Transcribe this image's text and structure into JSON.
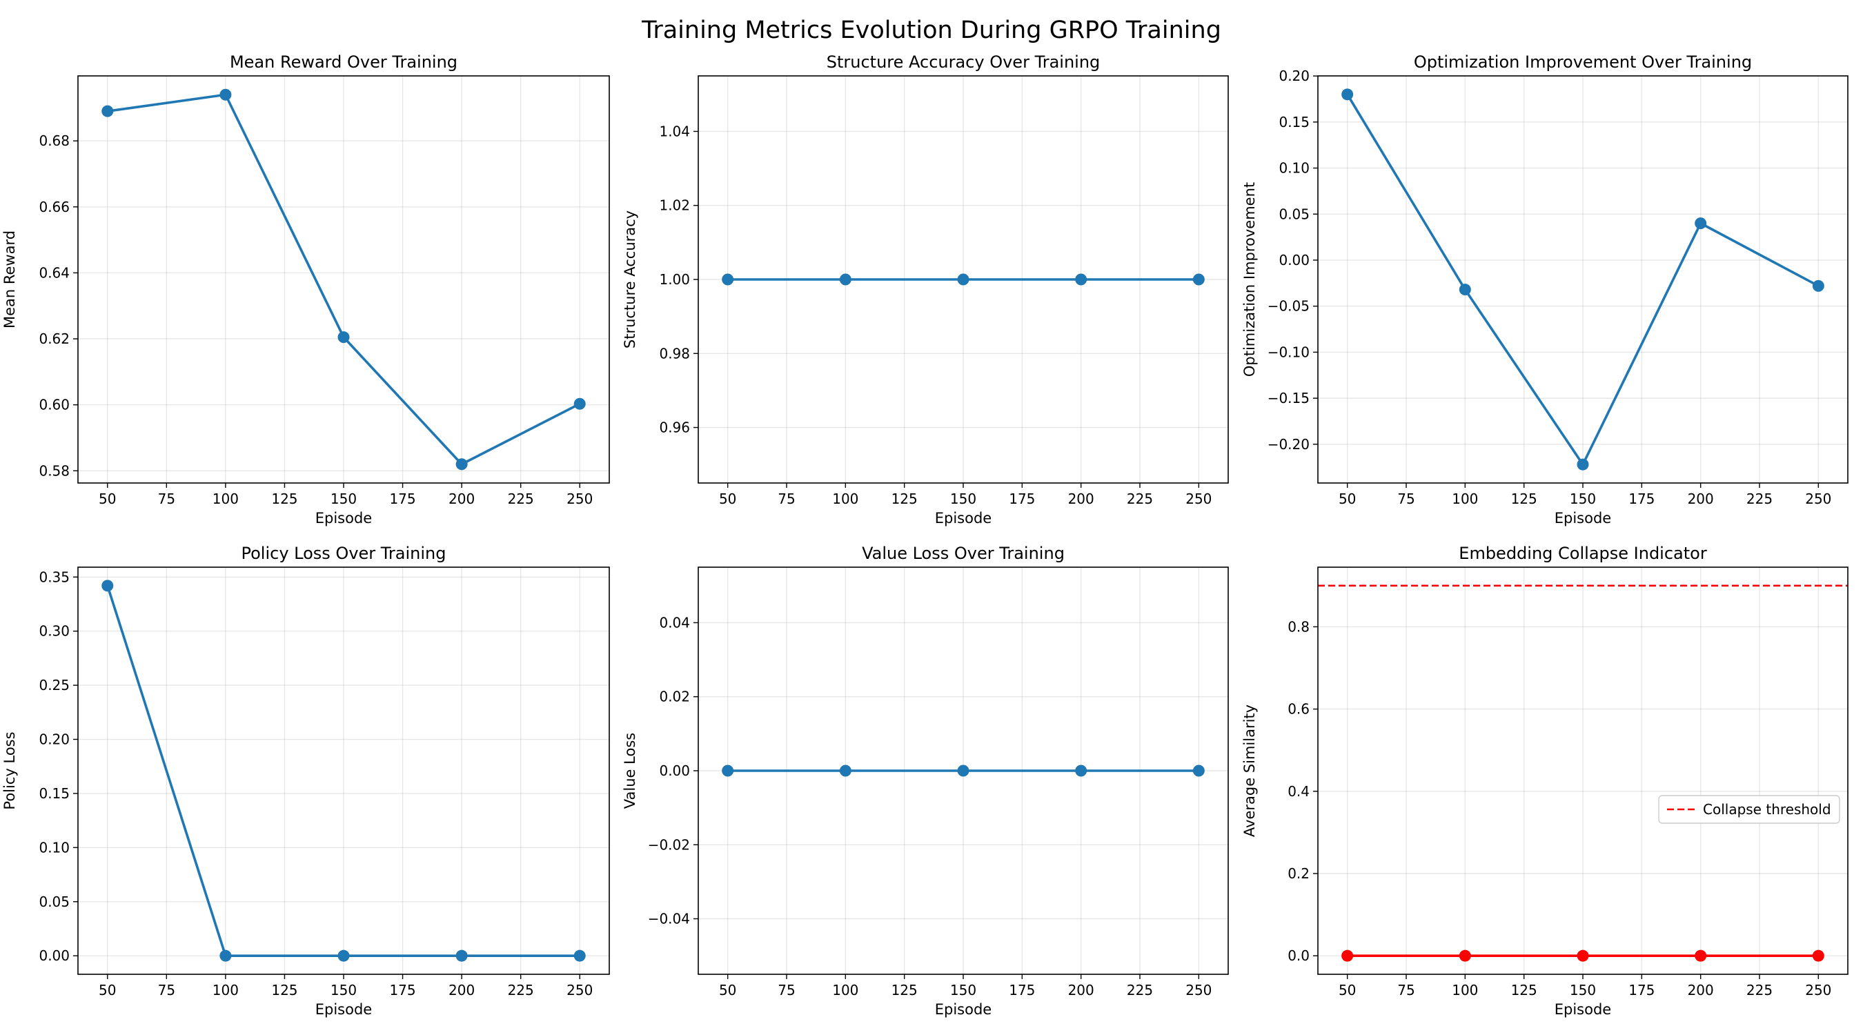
{
  "figure": {
    "title": "Training Metrics Evolution During GRPO Training"
  },
  "chart_data": [
    {
      "type": "line",
      "title": "Mean Reward Over Training",
      "xlabel": "Episode",
      "ylabel": "Mean Reward",
      "x": [
        50,
        100,
        150,
        200,
        250
      ],
      "series": [
        {
          "values": [
            0.689,
            0.694,
            0.6205,
            0.582,
            0.6003
          ],
          "color": "#1f77b4"
        }
      ],
      "xlim": [
        37.5,
        262.5
      ],
      "ylim": [
        0.5763,
        0.6997
      ],
      "xticks": [
        50,
        75,
        100,
        125,
        150,
        175,
        200,
        225,
        250
      ],
      "yticks": [
        0.58,
        0.6,
        0.62,
        0.64,
        0.66,
        0.68
      ],
      "ytick_labels": [
        "0.58",
        "0.60",
        "0.62",
        "0.64",
        "0.66",
        "0.68"
      ],
      "grid": true
    },
    {
      "type": "line",
      "title": "Structure Accuracy Over Training",
      "xlabel": "Episode",
      "ylabel": "Structure Accuracy",
      "x": [
        50,
        100,
        150,
        200,
        250
      ],
      "series": [
        {
          "values": [
            1.0,
            1.0,
            1.0,
            1.0,
            1.0
          ],
          "color": "#1f77b4"
        }
      ],
      "xlim": [
        37.5,
        262.5
      ],
      "ylim": [
        0.945,
        1.055
      ],
      "xticks": [
        50,
        75,
        100,
        125,
        150,
        175,
        200,
        225,
        250
      ],
      "yticks": [
        0.96,
        0.98,
        1.0,
        1.02,
        1.04
      ],
      "ytick_labels": [
        "0.96",
        "0.98",
        "1.00",
        "1.02",
        "1.04"
      ],
      "grid": true
    },
    {
      "type": "line",
      "title": "Optimization Improvement Over Training",
      "xlabel": "Episode",
      "ylabel": "Optimization Improvement",
      "x": [
        50,
        100,
        150,
        200,
        250
      ],
      "series": [
        {
          "values": [
            0.18,
            -0.032,
            -0.222,
            0.04,
            -0.028
          ],
          "color": "#1f77b4"
        }
      ],
      "xlim": [
        37.5,
        262.5
      ],
      "ylim": [
        -0.2421,
        0.2001
      ],
      "xticks": [
        50,
        75,
        100,
        125,
        150,
        175,
        200,
        225,
        250
      ],
      "yticks": [
        -0.2,
        -0.15,
        -0.1,
        -0.05,
        0.0,
        0.05,
        0.1,
        0.15,
        0.2
      ],
      "ytick_labels": [
        "−0.20",
        "−0.15",
        "−0.10",
        "−0.05",
        "0.00",
        "0.05",
        "0.10",
        "0.15",
        "0.20"
      ],
      "grid": true
    },
    {
      "type": "line",
      "title": "Policy Loss Over Training",
      "xlabel": "Episode",
      "ylabel": "Policy Loss",
      "x": [
        50,
        100,
        150,
        200,
        250
      ],
      "series": [
        {
          "values": [
            0.342,
            0.0,
            0.0,
            0.0,
            0.0
          ],
          "color": "#1f77b4"
        }
      ],
      "xlim": [
        37.5,
        262.5
      ],
      "ylim": [
        -0.0171,
        0.3591
      ],
      "xticks": [
        50,
        75,
        100,
        125,
        150,
        175,
        200,
        225,
        250
      ],
      "yticks": [
        0.0,
        0.05,
        0.1,
        0.15,
        0.2,
        0.25,
        0.3,
        0.35
      ],
      "ytick_labels": [
        "0.00",
        "0.05",
        "0.10",
        "0.15",
        "0.20",
        "0.25",
        "0.30",
        "0.35"
      ],
      "grid": true
    },
    {
      "type": "line",
      "title": "Value Loss Over Training",
      "xlabel": "Episode",
      "ylabel": "Value Loss",
      "x": [
        50,
        100,
        150,
        200,
        250
      ],
      "series": [
        {
          "values": [
            0.0,
            0.0,
            0.0,
            0.0,
            0.0
          ],
          "color": "#1f77b4"
        }
      ],
      "xlim": [
        37.5,
        262.5
      ],
      "ylim": [
        -0.055,
        0.055
      ],
      "xticks": [
        50,
        75,
        100,
        125,
        150,
        175,
        200,
        225,
        250
      ],
      "yticks": [
        -0.04,
        -0.02,
        0.0,
        0.02,
        0.04
      ],
      "ytick_labels": [
        "−0.04",
        "−0.02",
        "0.00",
        "0.02",
        "0.04"
      ],
      "grid": true
    },
    {
      "type": "line",
      "title": "Embedding Collapse Indicator",
      "xlabel": "Episode",
      "ylabel": "Average Similarity",
      "x": [
        50,
        100,
        150,
        200,
        250
      ],
      "series": [
        {
          "values": [
            0.0,
            0.0,
            0.0,
            0.0,
            0.0
          ],
          "color": "#ff0000"
        }
      ],
      "threshold": {
        "name": "Collapse threshold",
        "value": 0.9,
        "color": "#ff0000",
        "style": "dashed"
      },
      "legend_position": "center-right",
      "xlim": [
        37.5,
        262.5
      ],
      "ylim": [
        -0.045,
        0.945
      ],
      "xticks": [
        50,
        75,
        100,
        125,
        150,
        175,
        200,
        225,
        250
      ],
      "yticks": [
        0.0,
        0.2,
        0.4,
        0.6,
        0.8
      ],
      "ytick_labels": [
        "0.0",
        "0.2",
        "0.4",
        "0.6",
        "0.8"
      ],
      "grid": true
    }
  ]
}
